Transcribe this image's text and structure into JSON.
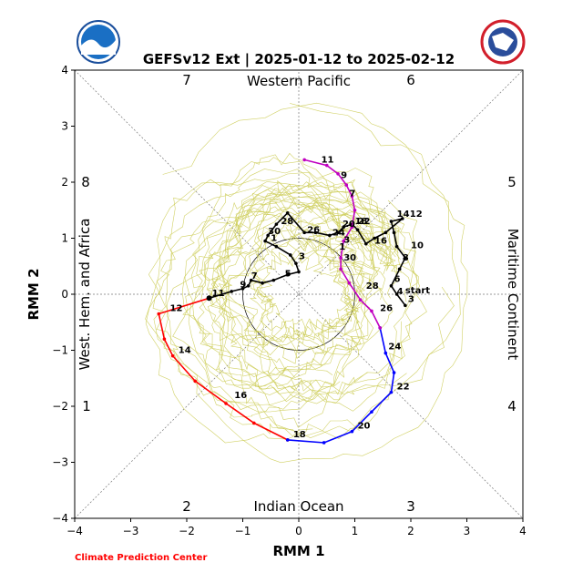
{
  "chart_data": {
    "type": "line",
    "title": "GEFSv12 Ext | 2025-01-12 to 2025-02-12",
    "xlabel": "RMM 1",
    "ylabel": "RMM 2",
    "xlim": [
      -4,
      4
    ],
    "ylim": [
      -4,
      4
    ],
    "xticks": [
      "−4",
      "−3",
      "−2",
      "−1",
      "0",
      "1",
      "2",
      "3",
      "4"
    ],
    "yticks": [
      "−4",
      "−3",
      "−2",
      "−1",
      "0",
      "1",
      "2",
      "3",
      "4"
    ],
    "grid": false,
    "unit_circle_radius": 1,
    "regions": {
      "top": "Western Pacific",
      "bottom": "Indian Ocean",
      "left": "West. Hem. and Africa",
      "right": "Maritime Continent"
    },
    "phases": [
      "1",
      "2",
      "3",
      "4",
      "5",
      "6",
      "7",
      "8"
    ],
    "credit": "Climate Prediction Center",
    "logos": [
      "NOAA",
      "National Weather Service"
    ],
    "series": [
      {
        "color": "#000000",
        "points": [
          [
            1.9,
            -0.2
          ],
          [
            1.75,
            0
          ],
          [
            1.65,
            0.15
          ],
          [
            1.8,
            0.45
          ],
          [
            1.9,
            0.65
          ],
          [
            1.75,
            0.85
          ],
          [
            1.7,
            1.1
          ],
          [
            1.65,
            1.3
          ],
          [
            1.85,
            1.35
          ],
          [
            1.55,
            1.1
          ],
          [
            1.35,
            1.0
          ],
          [
            1.2,
            0.9
          ],
          [
            1.05,
            1.15
          ],
          [
            0.95,
            1.25
          ],
          [
            0.8,
            1.2
          ],
          [
            0.7,
            1.1
          ],
          [
            0.55,
            1.05
          ],
          [
            0.3,
            1.1
          ],
          [
            0.1,
            1.1
          ],
          [
            -0.2,
            1.45
          ],
          [
            -0.4,
            1.25
          ],
          [
            -0.55,
            1.05
          ],
          [
            -0.6,
            0.95
          ],
          [
            -0.4,
            0.85
          ],
          [
            -0.15,
            0.7
          ],
          [
            -0.05,
            0.55
          ],
          [
            0,
            0.4
          ],
          [
            -0.2,
            0.35
          ],
          [
            -0.45,
            0.25
          ],
          [
            -0.65,
            0.2
          ],
          [
            -0.85,
            0.25
          ],
          [
            -0.9,
            0.15
          ],
          [
            -1.0,
            0.1
          ],
          [
            -1.2,
            0.05
          ],
          [
            -1.6,
            -0.07
          ]
        ],
        "labels": [
          {
            "text": "start",
            "x": 1.9,
            "y": 0.02
          },
          {
            "text": "3",
            "x": 1.95,
            "y": -0.14
          },
          {
            "text": "4",
            "x": 1.75,
            "y": 0.0
          },
          {
            "text": "6",
            "x": 1.7,
            "y": 0.22
          },
          {
            "text": "8",
            "x": 1.85,
            "y": 0.6
          },
          {
            "text": "10",
            "x": 2.0,
            "y": 0.82
          },
          {
            "text": "12",
            "x": 1.98,
            "y": 1.38
          },
          {
            "text": "14",
            "x": 1.75,
            "y": 1.38
          },
          {
            "text": "16",
            "x": 1.35,
            "y": 0.9
          },
          {
            "text": "18",
            "x": 1.0,
            "y": 1.25
          },
          {
            "text": "20",
            "x": 0.78,
            "y": 1.2
          },
          {
            "text": "22",
            "x": 1.05,
            "y": 1.25
          },
          {
            "text": "24",
            "x": 0.6,
            "y": 1.05
          },
          {
            "text": "26",
            "x": 0.15,
            "y": 1.1
          },
          {
            "text": "28",
            "x": -0.32,
            "y": 1.25
          },
          {
            "text": "30",
            "x": -0.55,
            "y": 1.07
          },
          {
            "text": "1",
            "x": -0.5,
            "y": 0.95
          },
          {
            "text": "3",
            "x": 0.0,
            "y": 0.63
          },
          {
            "text": "5",
            "x": -0.25,
            "y": 0.32
          },
          {
            "text": "7",
            "x": -0.85,
            "y": 0.28
          },
          {
            "text": "9",
            "x": -1.05,
            "y": 0.12
          },
          {
            "text": "11",
            "x": -1.55,
            "y": -0.03
          }
        ]
      },
      {
        "color": "#ff0000",
        "points": [
          [
            -1.6,
            -0.07
          ],
          [
            -2.5,
            -0.35
          ],
          [
            -2.4,
            -0.8
          ],
          [
            -2.25,
            -1.1
          ],
          [
            -1.85,
            -1.55
          ],
          [
            -1.3,
            -1.95
          ],
          [
            -0.8,
            -2.3
          ],
          [
            -0.2,
            -2.6
          ]
        ],
        "labels": [
          {
            "text": "12",
            "x": -2.3,
            "y": -0.3
          },
          {
            "text": "14",
            "x": -2.15,
            "y": -1.05
          },
          {
            "text": "16",
            "x": -1.15,
            "y": -1.85
          },
          {
            "text": "18",
            "x": -0.1,
            "y": -2.55
          }
        ]
      },
      {
        "color": "#0000ff",
        "points": [
          [
            -0.2,
            -2.6
          ],
          [
            0.45,
            -2.65
          ],
          [
            0.95,
            -2.45
          ],
          [
            1.3,
            -2.1
          ],
          [
            1.65,
            -1.75
          ],
          [
            1.7,
            -1.4
          ],
          [
            1.55,
            -1.05
          ],
          [
            1.45,
            -0.6
          ]
        ],
        "labels": [
          {
            "text": "20",
            "x": 1.05,
            "y": -2.4
          },
          {
            "text": "22",
            "x": 1.75,
            "y": -1.7
          },
          {
            "text": "24",
            "x": 1.6,
            "y": -0.98
          }
        ]
      },
      {
        "color": "#c000c0",
        "points": [
          [
            1.45,
            -0.6
          ],
          [
            1.3,
            -0.3
          ],
          [
            1.1,
            -0.1
          ],
          [
            0.9,
            0.2
          ],
          [
            0.75,
            0.45
          ],
          [
            0.75,
            0.65
          ],
          [
            0.8,
            0.95
          ],
          [
            0.95,
            1.2
          ],
          [
            1.0,
            1.5
          ],
          [
            0.95,
            1.75
          ],
          [
            0.85,
            1.95
          ],
          [
            0.7,
            2.15
          ],
          [
            0.5,
            2.3
          ],
          [
            0.1,
            2.4
          ]
        ],
        "labels": [
          {
            "text": "26",
            "x": 1.45,
            "y": -0.3
          },
          {
            "text": "28",
            "x": 1.2,
            "y": 0.1
          },
          {
            "text": "30",
            "x": 0.8,
            "y": 0.6
          },
          {
            "text": "1",
            "x": 0.72,
            "y": 0.8
          },
          {
            "text": "3",
            "x": 0.8,
            "y": 0.92
          },
          {
            "text": "7",
            "x": 0.9,
            "y": 1.75
          },
          {
            "text": "9",
            "x": 0.75,
            "y": 2.07
          },
          {
            "text": "11",
            "x": 0.4,
            "y": 2.35
          }
        ]
      }
    ],
    "ensemble_color": "#cccc55"
  }
}
